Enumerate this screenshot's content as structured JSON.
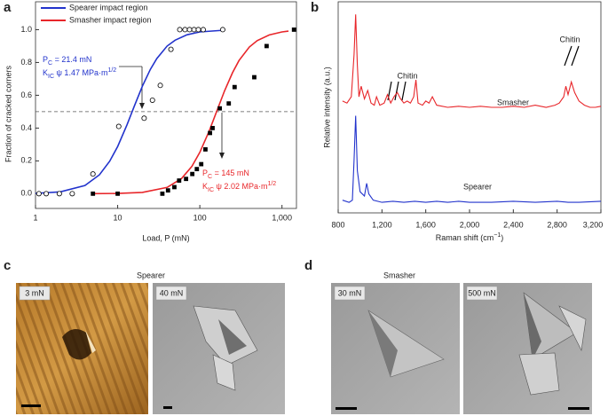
{
  "chart_data": [
    {
      "type": "scatter",
      "panel_label": "a",
      "xlabel": "Load, P (mN)",
      "ylabel": "Fraction of cracked corners",
      "xscale": "log",
      "xlim": [
        1,
        1500
      ],
      "xticks": [
        1,
        10,
        100,
        {
          "value": 1000,
          "label": "1,000"
        }
      ],
      "ylim": [
        -0.09,
        1.17
      ],
      "yticks": [
        {
          "value": 0,
          "label": "0.0"
        },
        {
          "value": 0.2,
          "label": "0.2"
        },
        {
          "value": 0.4,
          "label": "0.4"
        },
        {
          "value": 0.6,
          "label": "0.6"
        },
        {
          "value": 0.8,
          "label": "0.8"
        },
        {
          "value": 1,
          "label": "1.0"
        }
      ],
      "legend": "upper left",
      "hline": 0.5,
      "series": [
        {
          "name": "Spearer impact region",
          "color": "#2233cc",
          "x": [
            1,
            2,
            4,
            6,
            8,
            10,
            13,
            16,
            20,
            25,
            30,
            40,
            50,
            70,
            100,
            200
          ],
          "values": [
            0.002,
            0.011,
            0.05,
            0.115,
            0.198,
            0.288,
            0.42,
            0.536,
            0.655,
            0.758,
            0.824,
            0.9,
            0.936,
            0.969,
            0.986,
            0.997
          ]
        },
        {
          "name": "Smasher impact region",
          "color": "#e8262a",
          "x": [
            5,
            10,
            20,
            40,
            60,
            80,
            100,
            130,
            160,
            200,
            250,
            300,
            400,
            500,
            700,
            1000,
            1200
          ],
          "values": [
            0.0003,
            0.0016,
            0.008,
            0.038,
            0.093,
            0.167,
            0.252,
            0.382,
            0.5,
            0.627,
            0.738,
            0.812,
            0.894,
            0.933,
            0.968,
            0.986,
            0.991
          ]
        }
      ],
      "points": [
        {
          "marker": "circle",
          "color": "#000000",
          "x": [
            1.1,
            1.35,
            1.95,
            2.8,
            5,
            10.3,
            21,
            26.5,
            33,
            44.5,
            57,
            66,
            75,
            85,
            96,
            110,
            190
          ],
          "values": [
            0,
            0,
            0,
            0,
            0.12,
            0.41,
            0.46,
            0.57,
            0.66,
            0.88,
            1,
            1,
            1,
            1,
            1,
            1,
            1
          ]
        },
        {
          "marker": "square",
          "color": "#000000",
          "x": [
            5,
            10,
            35,
            41,
            49,
            56,
            68,
            81,
            92,
            104,
            117,
            133,
            143,
            175,
            225,
            265,
            460,
            650,
            1400
          ],
          "values": [
            0,
            0,
            0,
            0.02,
            0.04,
            0.08,
            0.09,
            0.12,
            0.15,
            0.18,
            0.27,
            0.37,
            0.4,
            0.52,
            0.55,
            0.65,
            0.71,
            0.9,
            1
          ]
        }
      ],
      "annotations": [
        {
          "color": "#2233cc",
          "lines": [
            [
              "P",
              "C",
              " = 21.4 mN"
            ],
            [
              "K",
              "IC",
              " ψ 1.47 MPa·m",
              "1/2"
            ]
          ]
        },
        {
          "color": "#e8262a",
          "lines": [
            [
              "P",
              "C",
              " = 145 mN"
            ],
            [
              "K",
              "IC",
              " ψ 2.02 MPa·m",
              "1/2"
            ]
          ]
        }
      ]
    },
    {
      "type": "line",
      "panel_label": "b",
      "xlabel": [
        "Raman shift (cm",
        "−1",
        ")"
      ],
      "ylabel": "Relative intensity (a.u.)",
      "xlim": [
        800,
        3200
      ],
      "xticks": [
        800,
        {
          "value": 1200,
          "label": "1,200"
        },
        {
          "value": 1600,
          "label": "1,600"
        },
        {
          "value": 2000,
          "label": "2,000"
        },
        {
          "value": 2400,
          "label": "2,400"
        },
        {
          "value": 2800,
          "label": "2,800"
        },
        {
          "value": 3200,
          "label": "3,200"
        }
      ],
      "ylim": [
        0,
        1
      ],
      "series": [
        {
          "name": "Smasher",
          "color": "#e8262a",
          "x": [
            840,
            880,
            920,
            945,
            960,
            975,
            990,
            1010,
            1040,
            1070,
            1100,
            1130,
            1150,
            1180,
            1220,
            1250,
            1280,
            1310,
            1340,
            1370,
            1400,
            1430,
            1460,
            1490,
            1510,
            1530,
            1570,
            1600,
            1630,
            1660,
            1700,
            1800,
            1900,
            2000,
            2100,
            2200,
            2300,
            2400,
            2500,
            2600,
            2700,
            2780,
            2820,
            2860,
            2880,
            2900,
            2930,
            2960,
            3000,
            3050,
            3100,
            3150,
            3200
          ],
          "values": [
            0.53,
            0.52,
            0.55,
            0.75,
            0.94,
            0.7,
            0.55,
            0.6,
            0.54,
            0.58,
            0.52,
            0.51,
            0.55,
            0.51,
            0.52,
            0.56,
            0.52,
            0.55,
            0.57,
            0.54,
            0.52,
            0.53,
            0.52,
            0.55,
            0.63,
            0.52,
            0.51,
            0.53,
            0.52,
            0.55,
            0.51,
            0.5,
            0.505,
            0.5,
            0.505,
            0.5,
            0.5,
            0.505,
            0.5,
            0.51,
            0.5,
            0.51,
            0.52,
            0.55,
            0.6,
            0.56,
            0.62,
            0.57,
            0.53,
            0.51,
            0.5,
            0.5,
            0.505
          ]
        },
        {
          "name": "Spearer",
          "color": "#2233cc",
          "x": [
            840,
            900,
            930,
            945,
            960,
            975,
            1000,
            1040,
            1060,
            1080,
            1120,
            1200,
            1300,
            1400,
            1500,
            1600,
            1700,
            1800,
            1900,
            2000,
            2200,
            2400,
            2600,
            2800,
            2900,
            3000,
            3200
          ],
          "values": [
            0.06,
            0.05,
            0.06,
            0.25,
            0.46,
            0.2,
            0.1,
            0.08,
            0.14,
            0.09,
            0.06,
            0.05,
            0.055,
            0.05,
            0.055,
            0.05,
            0.055,
            0.05,
            0.055,
            0.05,
            0.05,
            0.055,
            0.05,
            0.055,
            0.05,
            0.05,
            0.055
          ]
        }
      ],
      "annotations": [
        "Chitin",
        "Chitin"
      ]
    }
  ],
  "micrographs": [
    {
      "panel_label": "c",
      "title": "Spearer",
      "images": [
        "3 mN",
        "40 mN"
      ]
    },
    {
      "panel_label": "d",
      "title": "Smasher",
      "images": [
        "30 mN",
        "500 mN"
      ]
    }
  ]
}
